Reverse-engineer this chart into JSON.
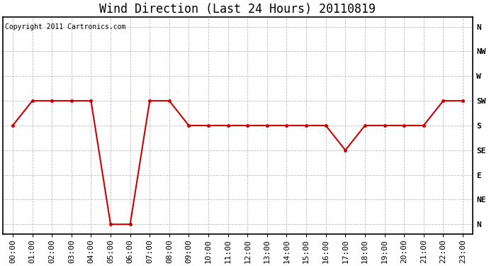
{
  "title": "Wind Direction (Last 24 Hours) 20110819",
  "copyright_text": "Copyright 2011 Cartronics.com",
  "x_labels": [
    "00:00",
    "01:00",
    "02:00",
    "03:00",
    "04:00",
    "05:00",
    "06:00",
    "07:00",
    "08:00",
    "09:00",
    "10:00",
    "11:00",
    "12:00",
    "13:00",
    "14:00",
    "15:00",
    "16:00",
    "17:00",
    "18:00",
    "19:00",
    "20:00",
    "21:00",
    "22:00",
    "23:00"
  ],
  "y_ticks": [
    0,
    1,
    2,
    3,
    4,
    5,
    6,
    7,
    8
  ],
  "y_labels": [
    "N",
    "NW",
    "W",
    "SW",
    "S",
    "SE",
    "E",
    "NE",
    "N"
  ],
  "wind_values": [
    4,
    3,
    3,
    3,
    3,
    8,
    8,
    3,
    3,
    4,
    4,
    4,
    4,
    4,
    4,
    4,
    4,
    5,
    4,
    4,
    4,
    4,
    3,
    3
  ],
  "line_color": "#cc0000",
  "marker_color": "#cc0000",
  "marker_style": "o",
  "marker_size": 3,
  "line_width": 1.5,
  "bg_color": "#ffffff",
  "plot_bg_color": "#ffffff",
  "grid_color": "#bbbbbb",
  "title_fontsize": 12,
  "copyright_fontsize": 7,
  "axis_label_fontsize": 8,
  "ylim": [
    -0.4,
    8.4
  ]
}
